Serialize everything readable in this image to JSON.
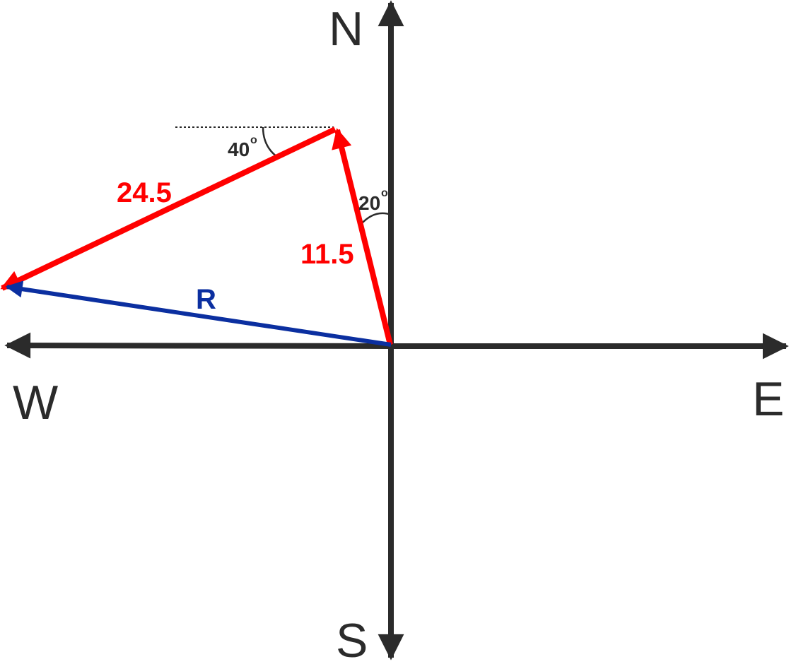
{
  "compass": {
    "north": "N",
    "south": "S",
    "east": "E",
    "west": "W"
  },
  "vectors": {
    "first": {
      "label": "11.5",
      "angle_label": "20",
      "degree_symbol": "o",
      "color": "#ff0000"
    },
    "second": {
      "label": "24.5",
      "angle_label": "40",
      "degree_symbol": "o",
      "color": "#ff0000"
    },
    "resultant": {
      "label": "R",
      "color": "#0b2fa0"
    }
  },
  "colors": {
    "axes": "#2b2b2b",
    "vectors": "#ff0000",
    "resultant": "#0b2fa0",
    "background": "#ffffff"
  }
}
